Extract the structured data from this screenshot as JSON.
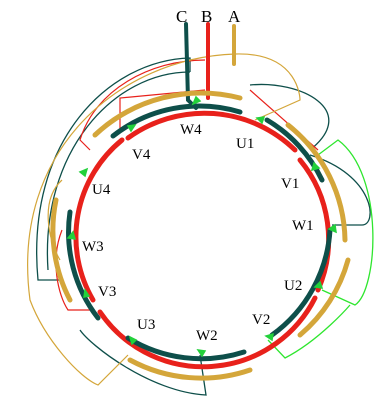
{
  "terminals": [
    {
      "id": "A",
      "label": "A",
      "color": "#D4A63A"
    },
    {
      "id": "B",
      "label": "B",
      "color": "#E8211B"
    },
    {
      "id": "C",
      "label": "C",
      "color": "#0E4F4A"
    }
  ],
  "coils": [
    {
      "label": "W4"
    },
    {
      "label": "U1"
    },
    {
      "label": "V1"
    },
    {
      "label": "W1"
    },
    {
      "label": "U2"
    },
    {
      "label": "V2"
    },
    {
      "label": "W2"
    },
    {
      "label": "U3"
    },
    {
      "label": "V3"
    },
    {
      "label": "W3"
    },
    {
      "label": "U4"
    },
    {
      "label": "V4"
    }
  ],
  "colors": {
    "phase_a": "#D4A63A",
    "phase_b": "#E8211B",
    "phase_c": "#0E4F4A",
    "link_light": "#2EE62E",
    "arrow": "#22D13B"
  }
}
